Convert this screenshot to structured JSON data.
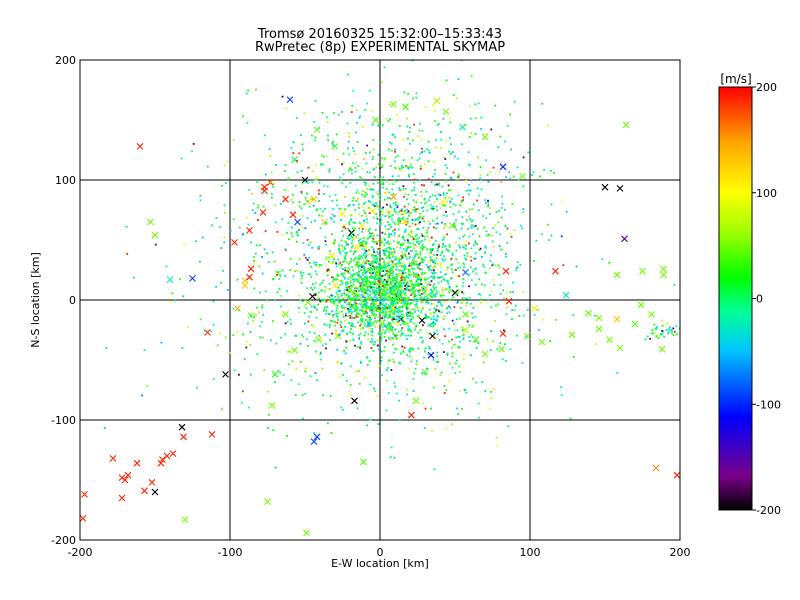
{
  "chart_data": {
    "type": "scatter",
    "title": "Tromsø 20160325 15:32:00–15:33:43",
    "subtitle": "RwPretec (8p) EXPERIMENTAL SKYMAP",
    "xlabel": "E-W location [km]",
    "ylabel": "N-S location [km]",
    "xlim": [
      -200,
      200
    ],
    "ylim": [
      -200,
      200
    ],
    "xticks": [
      "-200",
      "-100",
      "0",
      "100",
      "200"
    ],
    "yticks": [
      "-200",
      "-100",
      "0",
      "100",
      "200"
    ],
    "grid": true,
    "colorbar": {
      "title": "[m/s]",
      "min": -200,
      "max": 200,
      "ticks": [
        "200",
        "100",
        "0",
        "-100",
        "-200"
      ],
      "colormap": [
        "#000000",
        "#7a0089",
        "#0000ff",
        "#00c8ff",
        "#00ff96",
        "#00ff00",
        "#96ff00",
        "#ffff00",
        "#ffa500",
        "#ff0000"
      ]
    },
    "marker_types": [
      "cross",
      "dot"
    ],
    "points": [
      [
        -197,
        -162,
        190,
        "x"
      ],
      [
        -198,
        -182,
        190,
        "x"
      ],
      [
        -178,
        -132,
        190,
        "x"
      ],
      [
        -172,
        -148,
        190,
        "x"
      ],
      [
        -170,
        -150,
        190,
        "x"
      ],
      [
        -168,
        -146,
        190,
        "x"
      ],
      [
        -172,
        -165,
        190,
        "x"
      ],
      [
        -162,
        -136,
        190,
        "x"
      ],
      [
        -157,
        -159,
        190,
        "x"
      ],
      [
        -152,
        -152,
        190,
        "x"
      ],
      [
        -145,
        -133,
        190,
        "x"
      ],
      [
        -146,
        -136,
        190,
        "x"
      ],
      [
        -142,
        -130,
        190,
        "x"
      ],
      [
        -138,
        -128,
        190,
        "x"
      ],
      [
        -150,
        -160,
        -200,
        "x"
      ],
      [
        -132,
        -106,
        -200,
        "x"
      ],
      [
        -131,
        -114,
        190,
        "x"
      ],
      [
        -112,
        -112,
        190,
        "x"
      ],
      [
        -103,
        -62,
        -200,
        "x"
      ],
      [
        -130,
        -183,
        40,
        "x"
      ],
      [
        -75,
        -168,
        40,
        "x"
      ],
      [
        -49,
        -194,
        40,
        "x"
      ],
      [
        -11,
        -135,
        30,
        "x"
      ],
      [
        -17,
        -84,
        -200,
        "x"
      ],
      [
        -44,
        -118,
        -100,
        "x"
      ],
      [
        -42,
        -114,
        -100,
        "x"
      ],
      [
        21,
        -96,
        190,
        "x"
      ],
      [
        -160,
        128,
        190,
        "x"
      ],
      [
        -150,
        54,
        40,
        "x"
      ],
      [
        -153,
        65,
        40,
        "x"
      ],
      [
        -140,
        17,
        -30,
        "x"
      ],
      [
        -125,
        18,
        -100,
        "x"
      ],
      [
        -115,
        -27,
        190,
        "x"
      ],
      [
        -95,
        -7,
        150,
        "x"
      ],
      [
        -90,
        12,
        130,
        "x"
      ],
      [
        -86,
        -13,
        40,
        "x"
      ],
      [
        -90,
        16,
        130,
        "x"
      ],
      [
        -86,
        26,
        190,
        "x"
      ],
      [
        -87,
        19,
        190,
        "x"
      ],
      [
        -97,
        48,
        190,
        "x"
      ],
      [
        -87,
        58,
        190,
        "x"
      ],
      [
        -78,
        73,
        190,
        "x"
      ],
      [
        -77,
        91,
        190,
        "x"
      ],
      [
        -77,
        94,
        190,
        "x"
      ],
      [
        -73,
        98,
        190,
        "x"
      ],
      [
        -63,
        84,
        190,
        "x"
      ],
      [
        -58,
        71,
        190,
        "x"
      ],
      [
        -55,
        65,
        -100,
        "x"
      ],
      [
        -68,
        22,
        40,
        "x"
      ],
      [
        -63,
        -12,
        40,
        "x"
      ],
      [
        -48,
        -2,
        40,
        "x"
      ],
      [
        -41,
        -33,
        40,
        "x"
      ],
      [
        -57,
        -42,
        40,
        "x"
      ],
      [
        -70,
        -62,
        20,
        "x"
      ],
      [
        -72,
        -88,
        40,
        "x"
      ],
      [
        -57,
        117,
        0,
        "x"
      ],
      [
        -60,
        167,
        -100,
        "x"
      ],
      [
        -48,
        82,
        130,
        "x"
      ],
      [
        -44,
        84,
        130,
        "x"
      ],
      [
        -37,
        65,
        130,
        "x"
      ],
      [
        -32,
        37,
        110,
        "x"
      ],
      [
        -25,
        72,
        110,
        "x"
      ],
      [
        -19,
        56,
        -200,
        "x"
      ],
      [
        -15,
        31,
        110,
        "x"
      ],
      [
        -45,
        3,
        -200,
        "x"
      ],
      [
        -30,
        12,
        110,
        "x"
      ],
      [
        -16,
        44,
        110,
        "x"
      ],
      [
        -12,
        47,
        60,
        "x"
      ],
      [
        9,
        86,
        150,
        "x"
      ],
      [
        17,
        66,
        130,
        "x"
      ],
      [
        -12,
        62,
        90,
        "x"
      ],
      [
        -5,
        74,
        110,
        "x"
      ],
      [
        6,
        73,
        90,
        "x"
      ],
      [
        12,
        2,
        -200,
        "x"
      ],
      [
        23,
        30,
        60,
        "x"
      ],
      [
        28,
        -17,
        -200,
        "x"
      ],
      [
        35,
        -30,
        -200,
        "x"
      ],
      [
        34,
        -46,
        -120,
        "x"
      ],
      [
        30,
        -60,
        40,
        "x"
      ],
      [
        24,
        -84,
        40,
        "x"
      ],
      [
        42,
        82,
        100,
        "x"
      ],
      [
        48,
        62,
        40,
        "x"
      ],
      [
        50,
        6,
        -200,
        "x"
      ],
      [
        57,
        23,
        -90,
        "x"
      ],
      [
        57,
        -12,
        30,
        "x"
      ],
      [
        57,
        -25,
        60,
        "x"
      ],
      [
        64,
        -33,
        30,
        "x"
      ],
      [
        70,
        -45,
        40,
        "x"
      ],
      [
        81,
        -41,
        40,
        "x"
      ],
      [
        84,
        24,
        190,
        "x"
      ],
      [
        86,
        -1,
        190,
        "x"
      ],
      [
        82,
        -28,
        190,
        "x"
      ],
      [
        98,
        -30,
        40,
        "x"
      ],
      [
        103,
        -7,
        110,
        "x"
      ],
      [
        108,
        -35,
        40,
        "x"
      ],
      [
        117,
        24,
        190,
        "x"
      ],
      [
        146,
        -15,
        40,
        "x"
      ],
      [
        146,
        -24,
        40,
        "x"
      ],
      [
        124,
        4,
        -30,
        "x"
      ],
      [
        128,
        -29,
        40,
        "x"
      ],
      [
        139,
        -11,
        40,
        "x"
      ],
      [
        158,
        21,
        40,
        "x"
      ],
      [
        158,
        -16,
        130,
        "x"
      ],
      [
        163,
        51,
        -160,
        "x"
      ],
      [
        160,
        -40,
        40,
        "x"
      ],
      [
        170,
        -20,
        30,
        "x"
      ],
      [
        184,
        -140,
        160,
        "x"
      ],
      [
        189,
        21,
        40,
        "x"
      ],
      [
        189,
        26,
        40,
        "x"
      ],
      [
        181,
        -12,
        40,
        "x"
      ],
      [
        198,
        -146,
        190,
        "x"
      ],
      [
        150,
        94,
        -200,
        "x"
      ],
      [
        160,
        93,
        -200,
        "x"
      ],
      [
        164,
        146,
        40,
        "x"
      ],
      [
        174,
        -4,
        40,
        "x"
      ],
      [
        175,
        24,
        40,
        "x"
      ],
      [
        188,
        -41,
        40,
        "x"
      ],
      [
        153,
        -33,
        40,
        "x"
      ],
      [
        38,
        166,
        60,
        "x"
      ],
      [
        44,
        157,
        40,
        "x"
      ],
      [
        55,
        144,
        -30,
        "x"
      ],
      [
        70,
        136,
        40,
        "x"
      ],
      [
        82,
        111,
        -110,
        "x"
      ],
      [
        95,
        103,
        40,
        "x"
      ],
      [
        -50,
        100,
        -200,
        "x"
      ],
      [
        -42,
        142,
        40,
        "x"
      ],
      [
        -30,
        128,
        30,
        "x"
      ],
      [
        -3,
        150,
        30,
        "x"
      ],
      [
        9,
        163,
        40,
        "x"
      ],
      [
        17,
        161,
        30,
        "x"
      ],
      [
        -5,
        -20,
        40,
        "x"
      ],
      [
        7,
        -25,
        40,
        "x"
      ],
      [
        -28,
        -30,
        40,
        "x"
      ],
      [
        -2,
        21,
        20,
        "x"
      ],
      [
        -8,
        -7,
        30,
        "x"
      ],
      [
        3,
        -12,
        30,
        "x"
      ],
      [
        -18,
        -6,
        40,
        "x"
      ],
      [
        14,
        -16,
        -200,
        "x"
      ],
      [
        22,
        9,
        30,
        "x"
      ],
      [
        -20,
        9,
        30,
        "x"
      ]
    ]
  }
}
